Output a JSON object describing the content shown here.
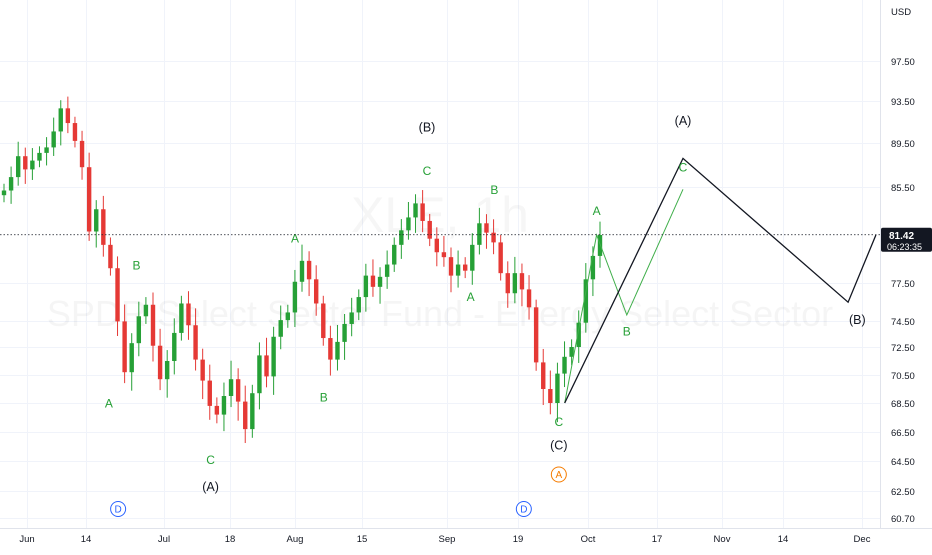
{
  "chart_data": {
    "type": "candlestick",
    "symbol_watermark": "XLE, 1h",
    "name_watermark": "SPDR Select Sector Fund - Energy Select Sector",
    "currency": "USD",
    "ylim": [
      59.8,
      101.0
    ],
    "y_ticks": [
      "97.50",
      "93.50",
      "89.50",
      "85.50",
      "77.50",
      "74.50",
      "72.50",
      "70.50",
      "68.50",
      "66.50",
      "64.50",
      "62.50",
      "60.70"
    ],
    "x_ticks": [
      "Jun",
      "14",
      "Jul",
      "18",
      "Aug",
      "15",
      "Sep",
      "19",
      "Oct",
      "17",
      "Nov",
      "14",
      "Dec"
    ],
    "last_price": "81.42",
    "countdown": "06:23:35",
    "colors": {
      "up": "#26a036",
      "down": "#e53935",
      "projection": "#131722",
      "wave_label": "#26a036",
      "circle_blue": "#2962ff",
      "circle_orange": "#f57c00"
    },
    "candle_closes_approx": [
      85.2,
      86.4,
      88.3,
      87.1,
      87.9,
      88.6,
      89.1,
      90.6,
      92.8,
      91.4,
      89.7,
      87.3,
      81.7,
      83.6,
      80.6,
      78.7,
      74.5,
      70.7,
      72.8,
      74.9,
      75.8,
      72.6,
      70.2,
      71.5,
      73.6,
      75.9,
      74.2,
      71.6,
      70.1,
      68.3,
      67.7,
      69.0,
      70.2,
      68.6,
      66.7,
      69.2,
      71.9,
      70.4,
      73.3,
      74.6,
      75.2,
      77.6,
      79.3,
      77.8,
      75.9,
      73.2,
      71.6,
      72.9,
      74.3,
      75.2,
      76.4,
      78.1,
      77.2,
      78.0,
      79.0,
      80.6,
      81.8,
      82.9,
      84.1,
      82.6,
      81.1,
      80.0,
      79.6,
      78.1,
      79.0,
      78.5,
      80.6,
      82.4,
      81.6,
      80.8,
      78.3,
      76.7,
      78.3,
      77.0,
      75.6,
      71.4,
      69.5,
      68.5,
      70.6,
      71.8,
      72.5,
      74.4,
      77.8,
      79.7,
      81.4
    ],
    "wave_labels": [
      {
        "text": "A",
        "x_date": "Jun 19",
        "y": 68.2,
        "style": "green"
      },
      {
        "text": "B",
        "x_date": "Jun 25",
        "y": 78.6,
        "style": "green"
      },
      {
        "text": "C",
        "x_date": "Jul 13",
        "y": 64.3,
        "style": "green"
      },
      {
        "text": "(A)",
        "x_date": "Jul 13",
        "y": 62.5,
        "style": "black"
      },
      {
        "text": "A",
        "x_date": "Aug 1",
        "y": 80.8,
        "style": "green"
      },
      {
        "text": "B",
        "x_date": "Aug 7",
        "y": 68.6,
        "style": "green"
      },
      {
        "text": "(B)",
        "x_date": "Aug 28",
        "y": 90.6,
        "style": "black"
      },
      {
        "text": "C",
        "x_date": "Aug 28",
        "y": 86.6,
        "style": "green"
      },
      {
        "text": "A",
        "x_date": "Sep 7",
        "y": 76.1,
        "style": "green"
      },
      {
        "text": "B",
        "x_date": "Sep 13",
        "y": 84.9,
        "style": "green"
      },
      {
        "text": "C",
        "x_date": "Sep 26",
        "y": 66.9,
        "style": "green"
      },
      {
        "text": "(C)",
        "x_date": "Sep 26",
        "y": 65.3,
        "style": "black"
      },
      {
        "text": "A",
        "x_date": "Oct 3",
        "y": 83.1,
        "style": "green"
      },
      {
        "text": "B",
        "x_date": "Oct 10",
        "y": 73.4,
        "style": "green"
      },
      {
        "text": "(A)",
        "x_date": "Oct 23",
        "y": 91.2,
        "style": "black"
      },
      {
        "text": "C",
        "x_date": "Oct 23",
        "y": 86.9,
        "style": "green"
      },
      {
        "text": "(B)",
        "x_date": "Nov 30",
        "y": 74.3,
        "style": "black"
      }
    ],
    "circle_markers": [
      {
        "text": "D",
        "x_date": "Jun 21",
        "y": 61.3,
        "color": "blue"
      },
      {
        "text": "D",
        "x_date": "Sep 20",
        "y": 61.3,
        "color": "blue"
      },
      {
        "text": "A",
        "x_date": "Sep 26",
        "y": 63.6,
        "color": "orange"
      }
    ],
    "projection_black": [
      {
        "x_date": "Sep 27",
        "y": 68.5
      },
      {
        "x_date": "Oct 23",
        "y": 88.1
      },
      {
        "x_date": "Nov 28",
        "y": 76.0
      },
      {
        "x_date": "Dec 4",
        "y": 81.4
      }
    ],
    "projection_green": [
      {
        "x_date": "Sep 27",
        "y": 68.5
      },
      {
        "x_date": "Oct 3",
        "y": 81.4
      },
      {
        "x_date": "Oct 10",
        "y": 75.0
      },
      {
        "x_date": "Oct 23",
        "y": 85.3
      }
    ]
  }
}
